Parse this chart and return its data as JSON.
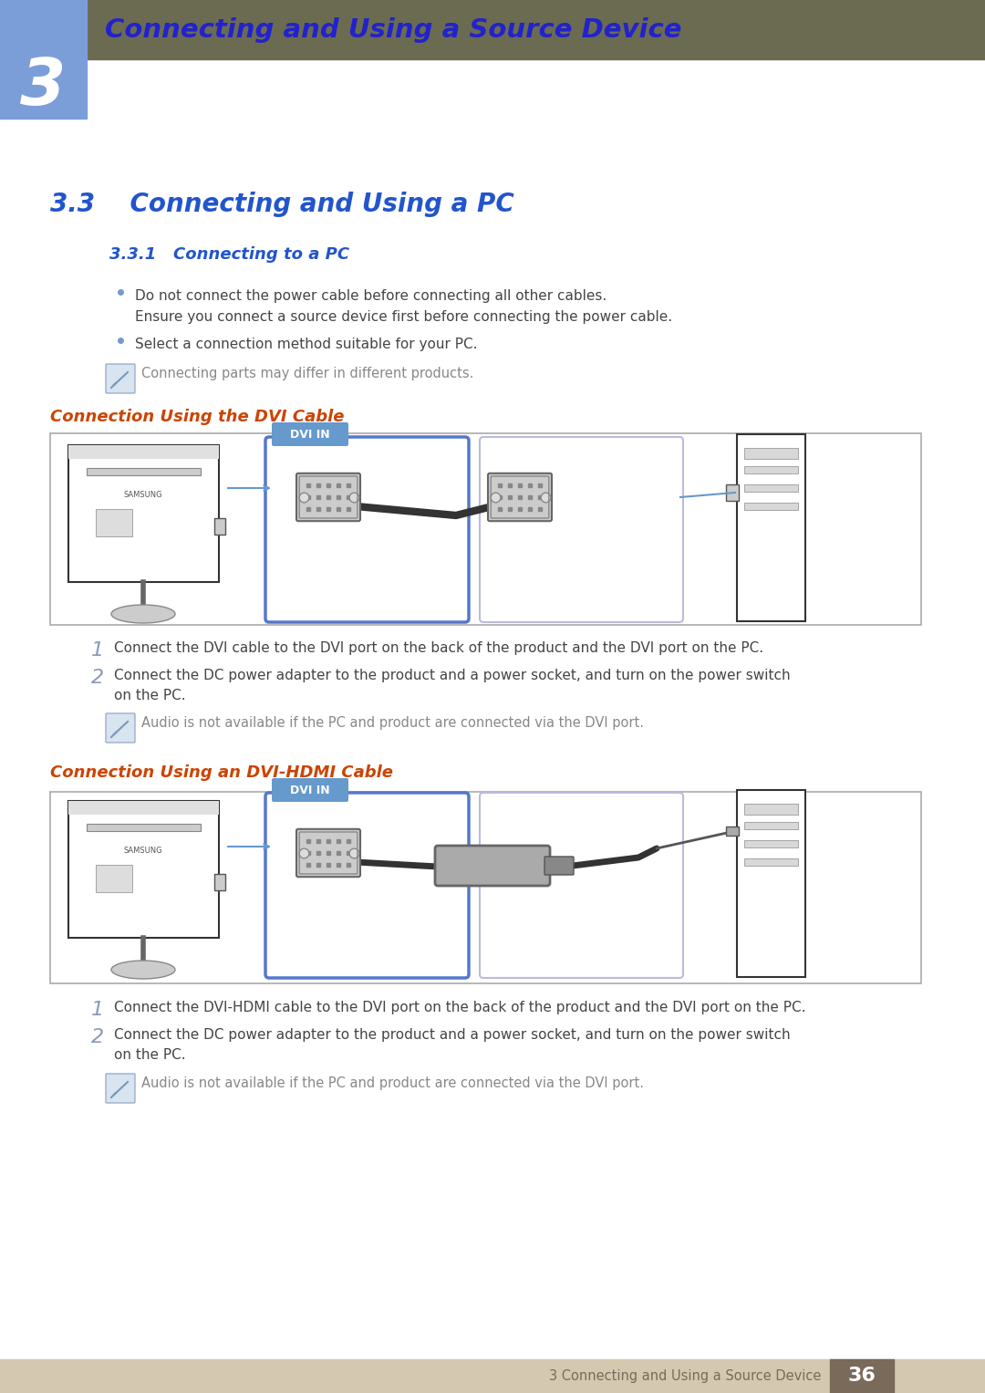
{
  "page_bg": "#ffffff",
  "header_bg": "#6b6b52",
  "header_blue_bg": "#7b9ed9",
  "header_text": "Connecting and Using a Source Device",
  "header_text_color": "#2222cc",
  "chapter_num": "3",
  "chapter_num_color": "#ffffff",
  "section_title": "3.3    Connecting and Using a PC",
  "section_title_color": "#2255cc",
  "subsection_title": "3.3.1   Connecting to a PC",
  "subsection_title_color": "#2255cc",
  "bullet_color": "#7799cc",
  "body_text_color": "#444444",
  "bullet1_line1": "Do not connect the power cable before connecting all other cables.",
  "bullet1_line2": "Ensure you connect a source device first before connecting the power cable.",
  "bullet2": "Select a connection method suitable for your PC.",
  "note1": "Connecting parts may differ in different products.",
  "connection_dvi_title": "Connection Using the DVI Cable",
  "connection_hdmi_title": "Connection Using an DVI-HDMI Cable",
  "step1_dvi": "Connect the DVI cable to the DVI port on the back of the product and the DVI port on the PC.",
  "step2_dvi_a": "Connect the DC power adapter to the product and a power socket, and turn on the power switch",
  "step2_dvi_b": "on the PC.",
  "note2_dvi": "Audio is not available if the PC and product are connected via the DVI port.",
  "step1_hdmi": "Connect the DVI-HDMI cable to the DVI port on the back of the product and the DVI port on the PC.",
  "step2_hdmi_a": "Connect the DC power adapter to the product and a power socket, and turn on the power switch",
  "step2_hdmi_b": "on the PC.",
  "note2_hdmi": "Audio is not available if the PC and product are connected via the DVI port.",
  "footer_bg": "#d4c9b0",
  "footer_text": "3 Connecting and Using a Source Device",
  "footer_text_color": "#7a6a5a",
  "footer_num": "36",
  "footer_num_bg": "#7a6a5a",
  "footer_num_color": "#ffffff",
  "dvi_label": "DVI IN",
  "dvi_label_bg": "#6699cc",
  "orange_color": "#cc4400",
  "step_num_color": "#8899bb",
  "note_icon_color": "#7b9fd4",
  "diagram_border": "#aaaacc",
  "diagram_bg": "#f8f8ff"
}
